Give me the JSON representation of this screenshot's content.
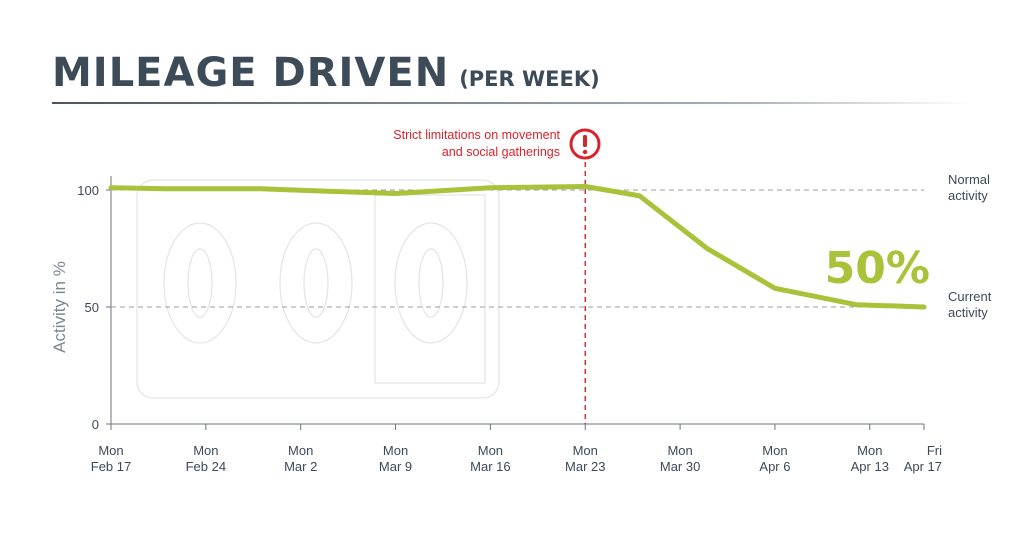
{
  "header": {
    "title": "MILEAGE DRIVEN",
    "subtitle": "(PER WEEK)"
  },
  "colors": {
    "line": "#a8c33a",
    "text": "#3d4a58",
    "event_line": "#d9232a",
    "reference": "#9a9fa5"
  },
  "chart_data": {
    "type": "line",
    "title": "MILEAGE DRIVEN",
    "subtitle": "(PER WEEK)",
    "xlabel": "",
    "ylabel": "Activity in %",
    "ylim": [
      0,
      100
    ],
    "yticks": [
      "0",
      "50",
      "100"
    ],
    "x_ticks": [
      [
        "Mon",
        "Feb 17"
      ],
      [
        "Mon",
        "Feb 24"
      ],
      [
        "Mon",
        "Mar 2"
      ],
      [
        "Mon",
        "Mar 9"
      ],
      [
        "Mon",
        "Mar 16"
      ],
      [
        "Mon",
        "Mar 23"
      ],
      [
        "Mon",
        "Mar 30"
      ],
      [
        "Mon",
        "Apr 6"
      ],
      [
        "Mon",
        "Apr 13"
      ],
      [
        "Fri",
        "Apr 17"
      ]
    ],
    "x": [
      "2020-02-17",
      "2020-02-21",
      "2020-02-28",
      "2020-03-04",
      "2020-03-09",
      "2020-03-16",
      "2020-03-23",
      "2020-03-27",
      "2020-04-01",
      "2020-04-06",
      "2020-04-12",
      "2020-04-17"
    ],
    "series": [
      {
        "values": [
          101,
          100.5,
          100.5,
          99.5,
          98.5,
          101,
          101.5,
          97.5,
          75,
          58,
          51,
          50
        ]
      }
    ],
    "reference_lines": [
      {
        "value": 100,
        "label": [
          "Normal",
          "activity"
        ]
      },
      {
        "value": 50,
        "label": [
          "Current",
          "activity"
        ]
      }
    ],
    "event": {
      "date": "2020-03-23",
      "label": [
        "Strict limitations on movement",
        "and social gatherings"
      ],
      "icon": "exclamation-circle-icon"
    },
    "callout": "50%",
    "grid": false,
    "legend": "none"
  }
}
